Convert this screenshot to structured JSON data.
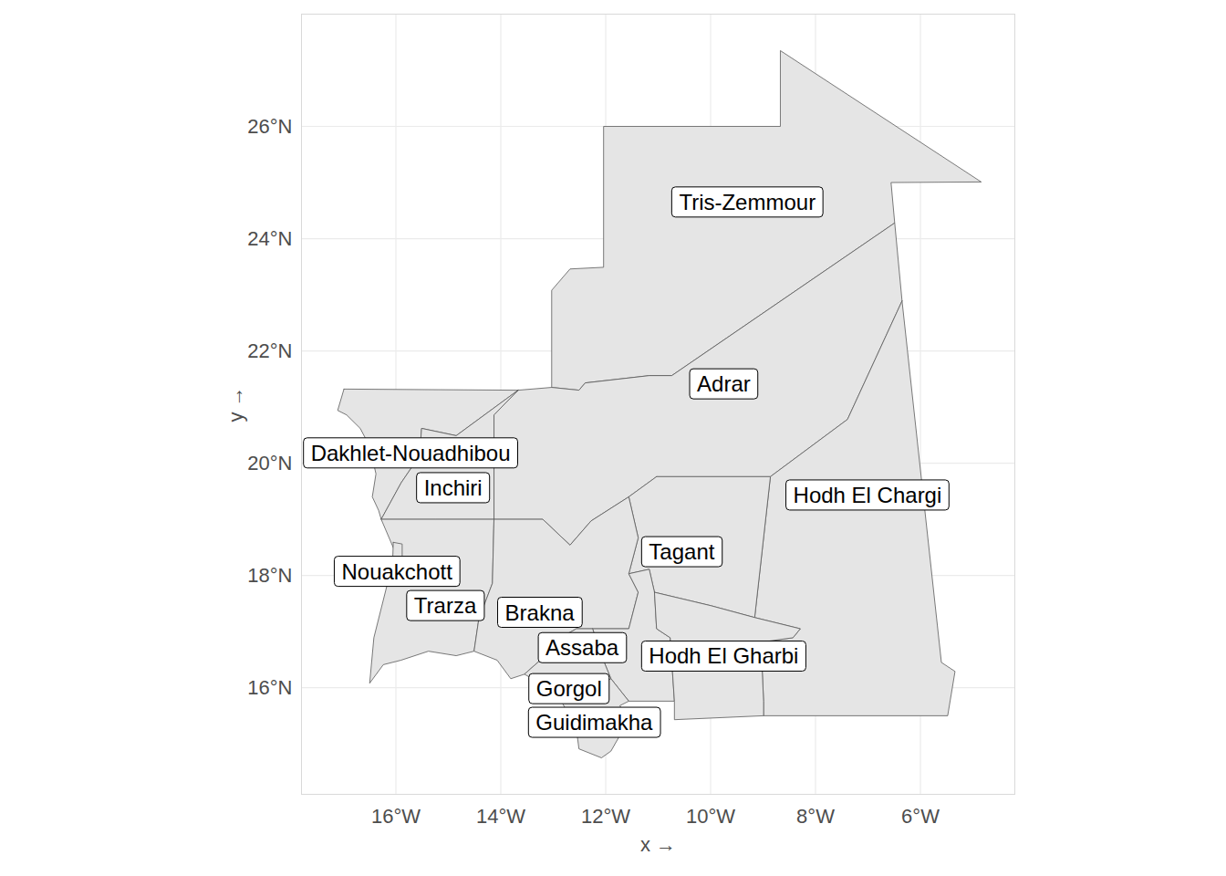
{
  "chart_data": {
    "type": "map",
    "x_label": "x",
    "y_label": "y",
    "xlim": [
      -17.8,
      -4.2
    ],
    "ylim": [
      14.1,
      28.0
    ],
    "xticks": [
      {
        "value": -16,
        "label": "16°W"
      },
      {
        "value": -14,
        "label": "14°W"
      },
      {
        "value": -12,
        "label": "12°W"
      },
      {
        "value": -10,
        "label": "10°W"
      },
      {
        "value": -8,
        "label": "8°W"
      },
      {
        "value": -6,
        "label": "6°W"
      }
    ],
    "yticks": [
      {
        "value": 16,
        "label": "16°N"
      },
      {
        "value": 18,
        "label": "18°N"
      },
      {
        "value": 20,
        "label": "20°N"
      },
      {
        "value": 22,
        "label": "22°N"
      },
      {
        "value": 24,
        "label": "24°N"
      },
      {
        "value": 26,
        "label": "26°N"
      }
    ],
    "grid": true,
    "color": "#e5e5e5",
    "regions": [
      {
        "name": "Tris-Zemmour",
        "label_x": -9.3,
        "label_y": 24.64,
        "polygon": [
          [
            -13.03,
            21.35
          ],
          [
            -13.03,
            23.08
          ],
          [
            -12.68,
            23.46
          ],
          [
            -12.04,
            23.49
          ],
          [
            -12.04,
            26.0
          ],
          [
            -8.67,
            26.0
          ],
          [
            -8.67,
            27.35
          ],
          [
            -4.84,
            25.01
          ],
          [
            -6.56,
            25.0
          ],
          [
            -6.49,
            24.28
          ],
          [
            -10.74,
            21.56
          ],
          [
            -11.17,
            21.56
          ],
          [
            -12.39,
            21.43
          ],
          [
            -12.51,
            21.3
          ]
        ]
      },
      {
        "name": "Adrar",
        "label_x": -9.75,
        "label_y": 21.4,
        "polygon": [
          [
            -13.67,
            21.3
          ],
          [
            -13.03,
            21.35
          ],
          [
            -12.51,
            21.3
          ],
          [
            -12.39,
            21.43
          ],
          [
            -11.17,
            21.56
          ],
          [
            -10.74,
            21.56
          ],
          [
            -6.49,
            24.28
          ],
          [
            -6.35,
            22.89
          ],
          [
            -7.39,
            20.78
          ],
          [
            -8.86,
            19.76
          ],
          [
            -11.03,
            19.76
          ],
          [
            -11.56,
            19.4
          ],
          [
            -12.28,
            18.97
          ],
          [
            -12.68,
            18.54
          ],
          [
            -13.2,
            19.0
          ],
          [
            -14.13,
            19.0
          ],
          [
            -14.13,
            20.86
          ]
        ]
      },
      {
        "name": "Dakhlet-Nouadhibou",
        "label_x": -15.72,
        "label_y": 20.17,
        "polygon": [
          [
            -16.99,
            21.32
          ],
          [
            -13.67,
            21.3
          ],
          [
            -14.85,
            20.49
          ],
          [
            -15.51,
            20.62
          ],
          [
            -15.55,
            20.13
          ],
          [
            -15.9,
            19.65
          ],
          [
            -16.28,
            19.0
          ],
          [
            -16.33,
            19.16
          ],
          [
            -16.45,
            19.4
          ],
          [
            -16.38,
            19.81
          ],
          [
            -16.5,
            20.3
          ],
          [
            -16.68,
            20.62
          ],
          [
            -16.94,
            20.86
          ],
          [
            -17.11,
            20.94
          ]
        ]
      },
      {
        "name": "Inchiri",
        "label_x": -14.91,
        "label_y": 19.55,
        "polygon": [
          [
            -13.67,
            21.3
          ],
          [
            -14.13,
            20.86
          ],
          [
            -14.13,
            19.0
          ],
          [
            -15.24,
            19.0
          ],
          [
            -16.28,
            19.0
          ],
          [
            -15.9,
            19.65
          ],
          [
            -15.55,
            20.13
          ],
          [
            -15.51,
            20.62
          ],
          [
            -14.85,
            20.49
          ]
        ]
      },
      {
        "name": "Hodh El Chargi",
        "label_x": -7.01,
        "label_y": 19.42,
        "polygon": [
          [
            -6.35,
            22.89
          ],
          [
            -5.6,
            16.45
          ],
          [
            -5.34,
            16.29
          ],
          [
            -5.48,
            15.5
          ],
          [
            -8.99,
            15.5
          ],
          [
            -8.99,
            15.76
          ],
          [
            -9.04,
            16.81
          ],
          [
            -8.43,
            16.89
          ],
          [
            -8.29,
            17.05
          ],
          [
            -9.16,
            17.25
          ],
          [
            -8.86,
            19.76
          ],
          [
            -7.39,
            20.78
          ]
        ]
      },
      {
        "name": "Tagant",
        "label_x": -10.55,
        "label_y": 18.41,
        "polygon": [
          [
            -11.03,
            19.76
          ],
          [
            -8.86,
            19.76
          ],
          [
            -9.16,
            17.25
          ],
          [
            -9.99,
            17.46
          ],
          [
            -11.07,
            17.7
          ],
          [
            -11.17,
            18.11
          ],
          [
            -11.56,
            18.03
          ],
          [
            -11.38,
            18.67
          ],
          [
            -11.56,
            19.4
          ]
        ]
      },
      {
        "name": "Trarza",
        "label_x": -15.06,
        "label_y": 17.45,
        "polygon": [
          [
            -16.28,
            19.0
          ],
          [
            -14.13,
            19.0
          ],
          [
            -14.16,
            17.86
          ],
          [
            -14.42,
            17.22
          ],
          [
            -14.51,
            16.65
          ],
          [
            -14.85,
            16.57
          ],
          [
            -15.38,
            16.65
          ],
          [
            -15.9,
            16.49
          ],
          [
            -16.24,
            16.41
          ],
          [
            -16.5,
            16.08
          ],
          [
            -16.42,
            16.89
          ],
          [
            -16.16,
            17.86
          ],
          [
            -16.02,
            18.43
          ]
        ]
      },
      {
        "name": "Nouakchott",
        "label_x": -15.98,
        "label_y": 18.06,
        "polygon": [
          [
            -16.05,
            18.59
          ],
          [
            -15.88,
            18.56
          ],
          [
            -15.88,
            18.3
          ],
          [
            -16.06,
            18.3
          ]
        ]
      },
      {
        "name": "Brakna",
        "label_x": -13.26,
        "label_y": 17.33,
        "polygon": [
          [
            -14.13,
            19.0
          ],
          [
            -13.2,
            19.0
          ],
          [
            -12.68,
            18.54
          ],
          [
            -12.28,
            18.97
          ],
          [
            -11.56,
            19.4
          ],
          [
            -11.38,
            18.67
          ],
          [
            -11.56,
            18.03
          ],
          [
            -11.38,
            17.7
          ],
          [
            -11.56,
            17.05
          ],
          [
            -12.25,
            17.05
          ],
          [
            -12.56,
            17.05
          ],
          [
            -12.86,
            16.89
          ],
          [
            -13.15,
            16.57
          ],
          [
            -13.55,
            16.24
          ],
          [
            -13.81,
            16.16
          ],
          [
            -14.07,
            16.49
          ],
          [
            -14.51,
            16.65
          ],
          [
            -14.42,
            17.22
          ],
          [
            -14.16,
            17.86
          ]
        ]
      },
      {
        "name": "Assaba",
        "label_x": -12.45,
        "label_y": 16.7,
        "polygon": [
          [
            -12.25,
            17.05
          ],
          [
            -11.56,
            17.05
          ],
          [
            -11.38,
            17.7
          ],
          [
            -11.56,
            18.03
          ],
          [
            -11.17,
            18.11
          ],
          [
            -11.07,
            17.7
          ],
          [
            -11.03,
            17.05
          ],
          [
            -10.77,
            16.89
          ],
          [
            -10.69,
            15.76
          ],
          [
            -11.56,
            15.76
          ],
          [
            -11.9,
            16.16
          ],
          [
            -12.08,
            16.57
          ]
        ]
      },
      {
        "name": "Hodh El Gharbi",
        "label_x": -9.75,
        "label_y": 16.55,
        "polygon": [
          [
            -11.07,
            17.7
          ],
          [
            -9.99,
            17.46
          ],
          [
            -9.16,
            17.25
          ],
          [
            -8.29,
            17.05
          ],
          [
            -8.43,
            16.89
          ],
          [
            -9.04,
            16.81
          ],
          [
            -8.99,
            15.76
          ],
          [
            -8.99,
            15.5
          ],
          [
            -10.69,
            15.43
          ],
          [
            -10.69,
            15.76
          ],
          [
            -10.77,
            16.89
          ],
          [
            -11.03,
            17.05
          ]
        ]
      },
      {
        "name": "Gorgol",
        "label_x": -12.7,
        "label_y": 15.97,
        "polygon": [
          [
            -13.15,
            16.57
          ],
          [
            -12.86,
            16.89
          ],
          [
            -12.56,
            17.05
          ],
          [
            -12.25,
            17.05
          ],
          [
            -12.08,
            16.57
          ],
          [
            -11.9,
            16.16
          ],
          [
            -12.42,
            15.92
          ],
          [
            -12.94,
            15.92
          ],
          [
            -13.55,
            16.24
          ]
        ]
      },
      {
        "name": "Guidimakha",
        "label_x": -12.22,
        "label_y": 15.37,
        "polygon": [
          [
            -12.94,
            15.92
          ],
          [
            -12.42,
            15.92
          ],
          [
            -11.9,
            16.16
          ],
          [
            -11.56,
            15.76
          ],
          [
            -11.73,
            15.68
          ],
          [
            -11.56,
            15.43
          ],
          [
            -11.9,
            14.87
          ],
          [
            -12.08,
            14.75
          ],
          [
            -12.51,
            14.91
          ],
          [
            -12.56,
            15.27
          ]
        ]
      }
    ]
  }
}
